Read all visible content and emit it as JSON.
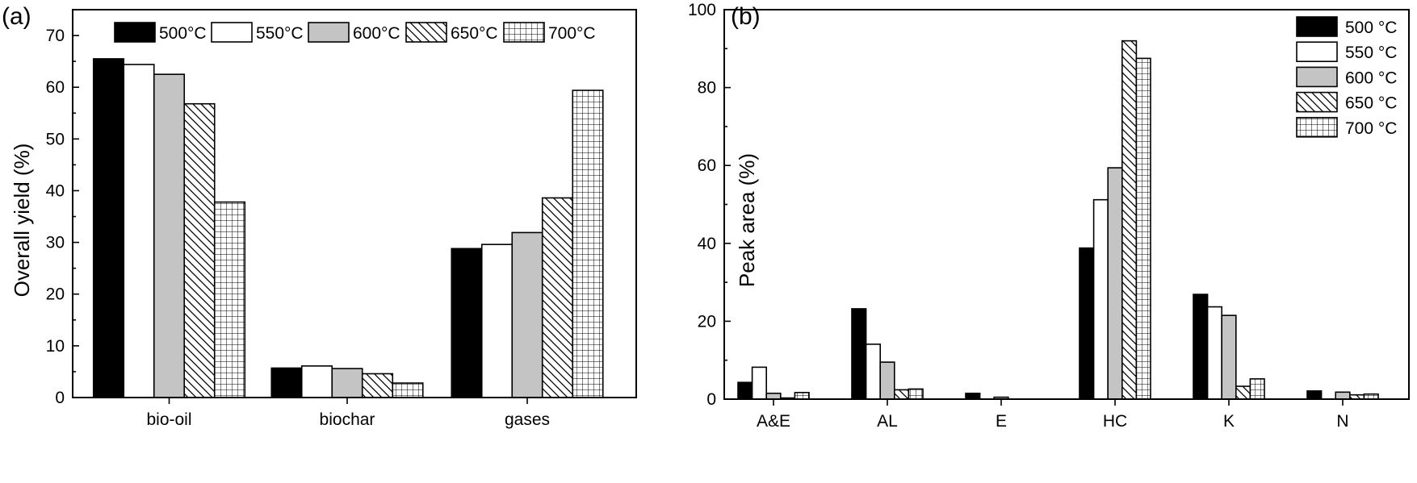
{
  "chart_data": [
    {
      "panel_label": "(a)",
      "type": "bar",
      "ylabel": "Overall yield (%)",
      "xlabel": "",
      "ylim": [
        0,
        75
      ],
      "yticks": [
        0,
        10,
        20,
        30,
        40,
        50,
        60,
        70
      ],
      "categories": [
        "bio-oil",
        "biochar",
        "gases"
      ],
      "legend_position": "top",
      "series": [
        {
          "name": "500°C",
          "pattern": "solid-black",
          "values": [
            65.5,
            5.7,
            28.8
          ]
        },
        {
          "name": "550°C",
          "pattern": "white",
          "values": [
            64.4,
            6.1,
            29.6
          ]
        },
        {
          "name": "600°C",
          "pattern": "gray",
          "values": [
            62.5,
            5.6,
            31.9
          ]
        },
        {
          "name": "650°C",
          "pattern": "diagonal-hatch",
          "values": [
            56.8,
            4.6,
            38.6
          ]
        },
        {
          "name": "700°C",
          "pattern": "grid-hatch",
          "values": [
            37.8,
            2.8,
            59.4
          ]
        }
      ]
    },
    {
      "panel_label": "(b)",
      "type": "bar",
      "ylabel": "Peak area (%)",
      "xlabel": "",
      "ylim": [
        0,
        100
      ],
      "yticks": [
        0,
        20,
        40,
        60,
        80,
        100
      ],
      "categories": [
        "A&E",
        "AL",
        "E",
        "HC",
        "K",
        "N"
      ],
      "legend_position": "top-right",
      "series": [
        {
          "name": "500 °C",
          "pattern": "solid-black",
          "values": [
            4.3,
            23.2,
            1.5,
            38.8,
            26.9,
            2.1
          ]
        },
        {
          "name": "550 °C",
          "pattern": "white",
          "values": [
            8.2,
            14.1,
            0.0,
            51.2,
            23.7,
            0.0
          ]
        },
        {
          "name": "600 °C",
          "pattern": "gray",
          "values": [
            1.5,
            9.5,
            0.5,
            59.4,
            21.5,
            1.8
          ]
        },
        {
          "name": "650 °C",
          "pattern": "diagonal-hatch",
          "values": [
            0.3,
            2.4,
            0.0,
            92.0,
            3.3,
            1.1
          ]
        },
        {
          "name": "700 °C",
          "pattern": "grid-hatch",
          "values": [
            1.7,
            2.6,
            0.0,
            87.5,
            5.2,
            1.3
          ]
        }
      ]
    }
  ]
}
